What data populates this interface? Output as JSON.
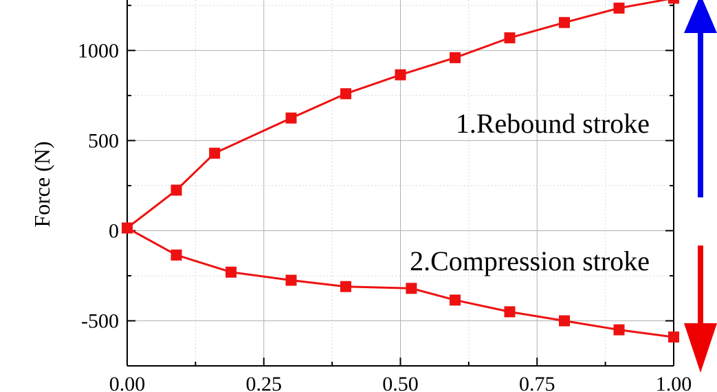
{
  "chart_data": {
    "type": "line",
    "ylabel": "Force (N)",
    "xlim": [
      0,
      1
    ],
    "ylim": [
      -750,
      1280
    ],
    "x_ticks": [
      "0.00",
      "0.25",
      "0.50",
      "0.75",
      "1.00"
    ],
    "y_ticks": [
      "-500",
      "0",
      "500",
      "1000"
    ],
    "grid": true,
    "series": [
      {
        "color": "#ee1111",
        "marker": "square",
        "x": [
          0.0,
          0.09,
          0.16,
          0.3,
          0.4,
          0.5,
          0.6,
          0.7,
          0.8,
          0.9,
          1.0
        ],
        "y": [
          15,
          225,
          430,
          625,
          760,
          865,
          960,
          1070,
          1155,
          1235,
          1290
        ]
      },
      {
        "color": "#ee1111",
        "marker": "square",
        "x": [
          0.0,
          0.09,
          0.19,
          0.3,
          0.4,
          0.52,
          0.6,
          0.7,
          0.8,
          0.9,
          1.0
        ],
        "y": [
          15,
          -135,
          -230,
          -275,
          -310,
          -320,
          -385,
          -450,
          -500,
          -550,
          -590
        ]
      }
    ],
    "annotations": [
      "1.Rebound stroke",
      "2.Compression stroke"
    ],
    "arrows": [
      {
        "direction": "up",
        "color": "#0000ee"
      },
      {
        "direction": "down",
        "color": "#ee0000"
      }
    ]
  }
}
